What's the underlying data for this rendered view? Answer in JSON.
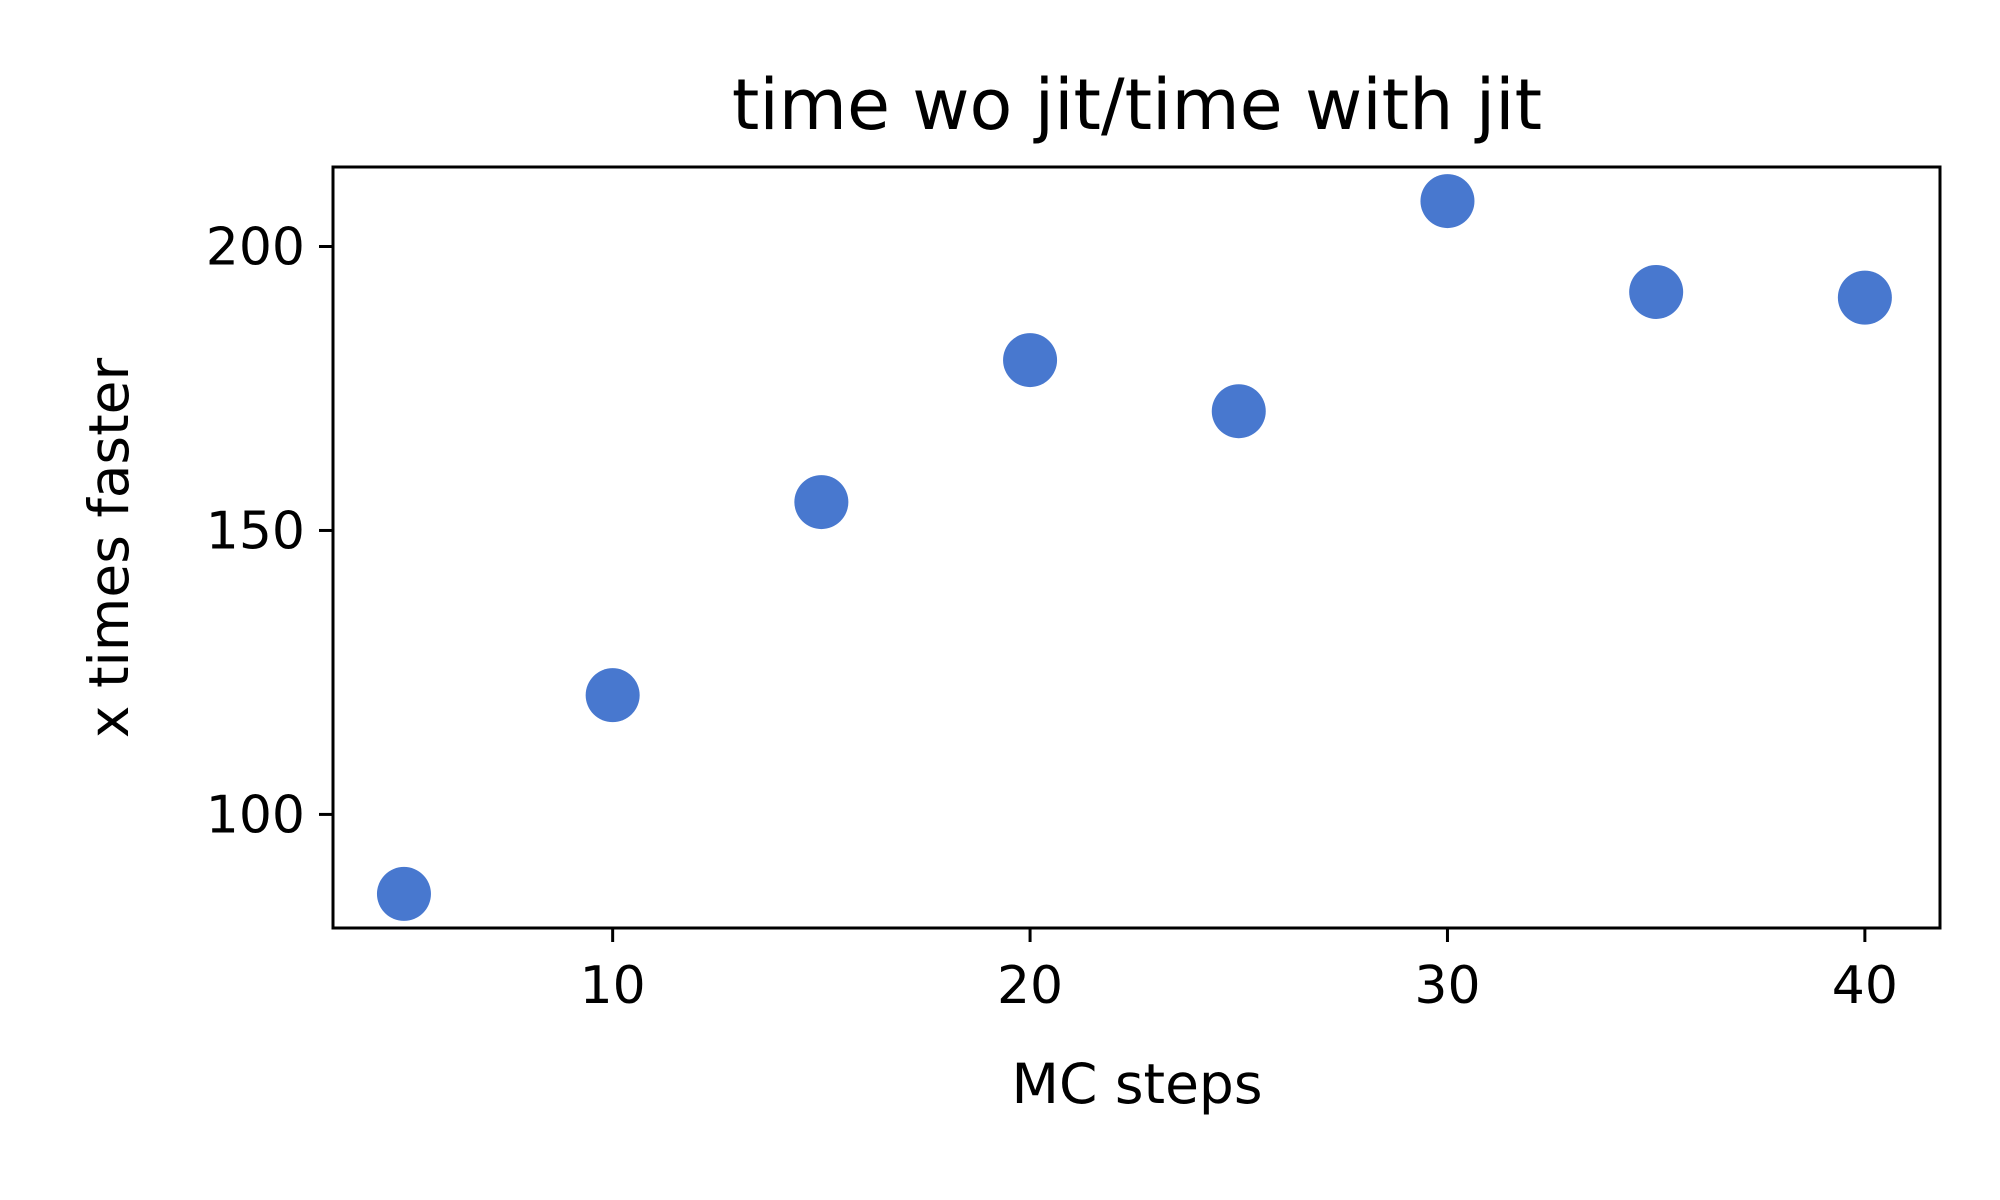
{
  "chart_data": {
    "type": "scatter",
    "title": "time wo jit/time with jit",
    "xlabel": "MC steps",
    "ylabel": "x times faster",
    "x": [
      5,
      10,
      15,
      20,
      25,
      30,
      35,
      40
    ],
    "y": [
      86,
      121,
      155,
      180,
      171,
      208,
      192,
      191
    ],
    "xlim": [
      3.3,
      41.8
    ],
    "ylim": [
      80,
      214
    ],
    "xticks": [
      10,
      20,
      30,
      40
    ],
    "xtick_labels": [
      "10",
      "20",
      "30",
      "40"
    ],
    "yticks": [
      100,
      150,
      200
    ],
    "ytick_labels": [
      "100",
      "150",
      "200"
    ],
    "grid": false,
    "legend": "none",
    "marker_color": "#4878cf"
  }
}
